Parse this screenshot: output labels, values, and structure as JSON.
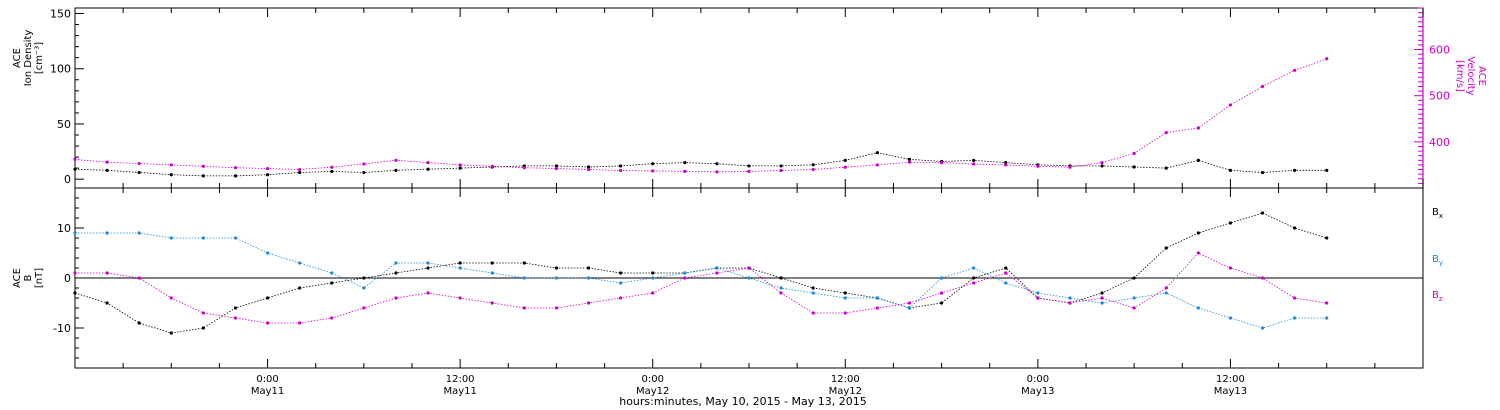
{
  "chart_data": [
    {
      "type": "scatter",
      "panel": "top",
      "ylabel_lines": [
        "ACE",
        "Ion Density",
        "[cm⁻³]"
      ],
      "ylim": [
        -8,
        155
      ],
      "yticks": [
        0,
        50,
        100,
        150
      ],
      "y2label_lines": [
        "ACE",
        "Velocity",
        "[km/s]"
      ],
      "y2lim": [
        300,
        690
      ],
      "y2ticks": [
        400,
        500,
        600
      ],
      "y2color": "#cc00cc",
      "series": [
        {
          "name": "",
          "axis": "left",
          "color": "#000000",
          "x": [
            0,
            2,
            4,
            6,
            8,
            10,
            12,
            14,
            16,
            18,
            20,
            22,
            24,
            26,
            28,
            30,
            32,
            34,
            36,
            38,
            40,
            42,
            44,
            46,
            48,
            50,
            52,
            54,
            56,
            58,
            60,
            62,
            64,
            66,
            68,
            70,
            72,
            74,
            76,
            78
          ],
          "y": [
            9,
            8,
            6,
            4,
            3,
            3,
            4,
            6,
            7,
            6,
            8,
            9,
            10,
            11,
            12,
            12,
            11,
            12,
            14,
            15,
            14,
            12,
            12,
            13,
            17,
            24,
            18,
            16,
            17,
            15,
            13,
            12,
            12,
            11,
            10,
            17,
            8,
            6,
            8,
            8
          ]
        },
        {
          "name": "",
          "axis": "right",
          "color": "#cc00cc",
          "x": [
            0,
            2,
            4,
            6,
            8,
            10,
            12,
            14,
            16,
            18,
            20,
            22,
            24,
            26,
            28,
            30,
            32,
            34,
            36,
            38,
            40,
            42,
            44,
            46,
            48,
            50,
            52,
            54,
            56,
            58,
            60,
            62,
            64,
            66,
            68,
            70,
            72,
            74,
            76,
            78
          ],
          "y": [
            362,
            356,
            353,
            350,
            347,
            344,
            342,
            340,
            345,
            352,
            360,
            355,
            350,
            347,
            344,
            342,
            340,
            338,
            337,
            336,
            335,
            336,
            338,
            340,
            345,
            350,
            356,
            355,
            352,
            350,
            347,
            345,
            355,
            375,
            420,
            430,
            480,
            520,
            555,
            580
          ]
        }
      ]
    },
    {
      "type": "scatter",
      "panel": "bottom",
      "ylabel_lines": [
        "ACE",
        "B",
        "[nT]"
      ],
      "ylim": [
        -18,
        18
      ],
      "yticks": [
        -10,
        0,
        10
      ],
      "series": [
        {
          "name": "Bx",
          "color": "#000000",
          "x": [
            0,
            2,
            4,
            6,
            8,
            10,
            12,
            14,
            16,
            18,
            20,
            22,
            24,
            26,
            28,
            30,
            32,
            34,
            36,
            38,
            40,
            42,
            44,
            46,
            48,
            50,
            52,
            54,
            56,
            58,
            60,
            62,
            64,
            66,
            68,
            70,
            72,
            74,
            76,
            78
          ],
          "y": [
            -3,
            -5,
            -9,
            -11,
            -10,
            -6,
            -4,
            -2,
            -1,
            0,
            1,
            2,
            3,
            3,
            3,
            2,
            2,
            1,
            1,
            1,
            2,
            2,
            0,
            -2,
            -3,
            -4,
            -6,
            -5,
            0,
            2,
            -4,
            -5,
            -3,
            0,
            6,
            9,
            11,
            13,
            10,
            8
          ]
        },
        {
          "name": "By",
          "color": "#1a88e0",
          "x": [
            0,
            2,
            4,
            6,
            8,
            10,
            12,
            14,
            16,
            18,
            20,
            22,
            24,
            26,
            28,
            30,
            32,
            34,
            36,
            38,
            40,
            42,
            44,
            46,
            48,
            50,
            52,
            54,
            56,
            58,
            60,
            62,
            64,
            66,
            68,
            70,
            72,
            74,
            76,
            78
          ],
          "y": [
            9,
            9,
            9,
            8,
            8,
            8,
            5,
            3,
            1,
            -2,
            3,
            3,
            2,
            1,
            0,
            0,
            0,
            -1,
            0,
            1,
            2,
            0,
            -2,
            -3,
            -4,
            -4,
            -6,
            0,
            2,
            -1,
            -3,
            -4,
            -5,
            -4,
            -3,
            -6,
            -8,
            -10,
            -8,
            -8
          ]
        },
        {
          "name": "Bz",
          "color": "#cc00cc",
          "x": [
            0,
            2,
            4,
            6,
            8,
            10,
            12,
            14,
            16,
            18,
            20,
            22,
            24,
            26,
            28,
            30,
            32,
            34,
            36,
            38,
            40,
            42,
            44,
            46,
            48,
            50,
            52,
            54,
            56,
            58,
            60,
            62,
            64,
            66,
            68,
            70,
            72,
            74,
            76,
            78
          ],
          "y": [
            1,
            1,
            0,
            -4,
            -7,
            -8,
            -9,
            -9,
            -8,
            -6,
            -4,
            -3,
            -4,
            -5,
            -6,
            -6,
            -5,
            -4,
            -3,
            0,
            1,
            2,
            -3,
            -7,
            -7,
            -6,
            -5,
            -3,
            -1,
            1,
            -4,
            -5,
            -4,
            -6,
            -2,
            5,
            2,
            0,
            -4,
            -5
          ]
        }
      ],
      "legend_position": "right"
    }
  ],
  "xaxis": {
    "title": "hours:minutes, May 10, 2015 - May 13, 2015",
    "xlim": [
      0,
      84
    ],
    "ticks": [
      {
        "x": 12,
        "time": "0:00",
        "date": "May11"
      },
      {
        "x": 24,
        "time": "12:00",
        "date": "May11"
      },
      {
        "x": 36,
        "time": "0:00",
        "date": "May12"
      },
      {
        "x": 48,
        "time": "12:00",
        "date": "May12"
      },
      {
        "x": 60,
        "time": "0:00",
        "date": "May13"
      },
      {
        "x": 72,
        "time": "12:00",
        "date": "May13"
      }
    ]
  },
  "legend": [
    {
      "base": "B",
      "sub": "x",
      "color": "#000000"
    },
    {
      "base": "B",
      "sub": "y",
      "color": "#1a88e0"
    },
    {
      "base": "B",
      "sub": "z",
      "color": "#cc00cc"
    }
  ]
}
